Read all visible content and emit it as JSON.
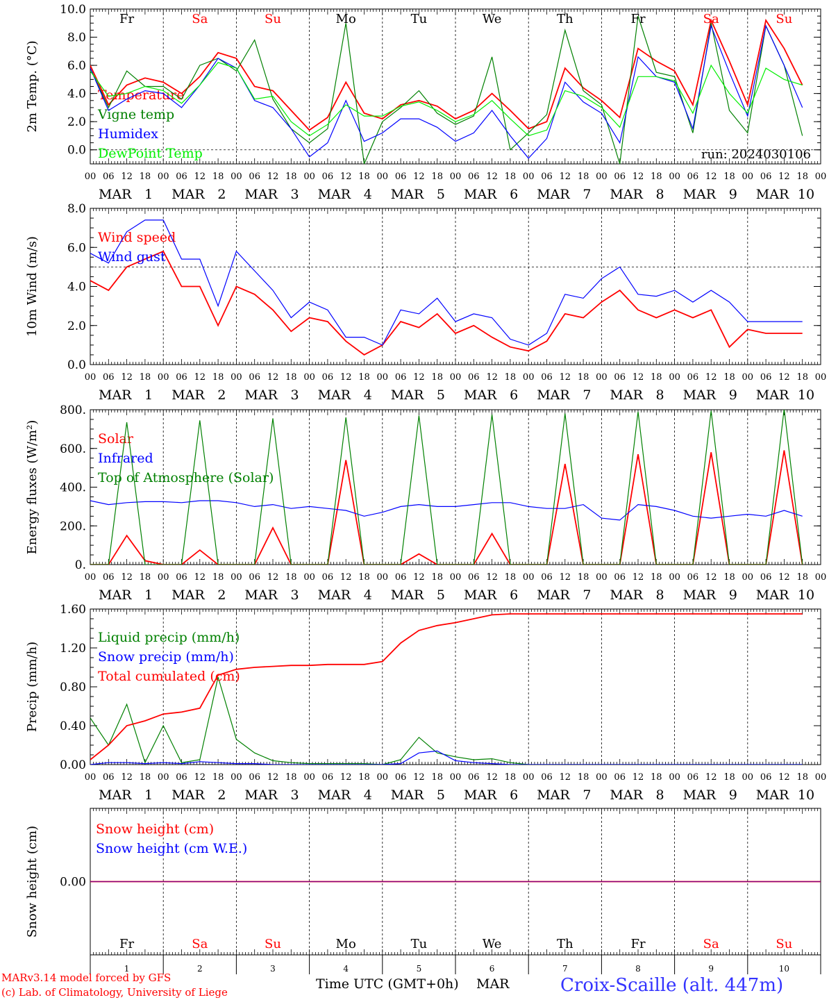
{
  "colors": {
    "red": "#ff0000",
    "blue": "#0000ff",
    "darkgreen": "#008000",
    "lightgreen": "#00ee00",
    "purple": "#800080",
    "black": "#000000",
    "title_blue": "#3333ff"
  },
  "days": [
    {
      "abbr": "Fr",
      "color": "black",
      "month": "MAR",
      "num": "1"
    },
    {
      "abbr": "Sa",
      "color": "red",
      "month": "MAR",
      "num": "2"
    },
    {
      "abbr": "Su",
      "color": "red",
      "month": "MAR",
      "num": "3"
    },
    {
      "abbr": "Mo",
      "color": "black",
      "month": "MAR",
      "num": "4"
    },
    {
      "abbr": "Tu",
      "color": "black",
      "month": "MAR",
      "num": "5"
    },
    {
      "abbr": "We",
      "color": "black",
      "month": "MAR",
      "num": "6"
    },
    {
      "abbr": "Th",
      "color": "black",
      "month": "MAR",
      "num": "7"
    },
    {
      "abbr": "Fr",
      "color": "black",
      "month": "MAR",
      "num": "8"
    },
    {
      "abbr": "Sa",
      "color": "red",
      "month": "MAR",
      "num": "9"
    },
    {
      "abbr": "Su",
      "color": "red",
      "month": "MAR",
      "num": "10"
    }
  ],
  "hour_ticks": [
    "00",
    "06",
    "12",
    "18"
  ],
  "last_tick": "00",
  "footer": {
    "model_line": "MARv3.14 model forced by GFS",
    "credit_line": "(c) Lab. of Climatology, University of Liege",
    "xlabel": "Time UTC (GMT+0h)",
    "month_label": "MAR",
    "station": "Croix-Scaille (alt. 447m)"
  },
  "chart_data": [
    {
      "type": "line",
      "ylabel": "2m Temp. (°C)",
      "ylim": [
        -1,
        10
      ],
      "yticks": [
        "0.0",
        "2.0",
        "4.0",
        "6.0",
        "8.0",
        "10.0"
      ],
      "ytick_values": [
        0,
        2,
        4,
        6,
        8,
        10
      ],
      "hline": 0,
      "annotation": "run: 2024030106",
      "x_unit": "6-hour steps from 2024-03-01 00 UTC",
      "series": [
        {
          "name": "Temperature",
          "color": "red",
          "values": [
            6.0,
            3.2,
            4.6,
            5.1,
            4.8,
            4.0,
            5.2,
            6.9,
            6.5,
            4.5,
            4.2,
            2.8,
            1.4,
            2.3,
            4.8,
            2.6,
            2.2,
            3.2,
            3.5,
            3.1,
            2.2,
            2.8,
            4.0,
            2.8,
            1.5,
            2.0,
            5.8,
            4.4,
            3.5,
            2.3,
            7.2,
            6.3,
            5.6,
            3.2,
            9.2,
            6.3,
            3.2,
            9.2,
            7.2,
            4.6
          ]
        },
        {
          "name": "Vigne temp",
          "color": "darkgreen",
          "values": [
            5.8,
            3.0,
            5.6,
            4.5,
            4.5,
            3.6,
            6.0,
            6.5,
            5.6,
            7.8,
            3.6,
            1.5,
            0.5,
            1.5,
            9.0,
            -1.0,
            2.0,
            3.0,
            4.2,
            2.6,
            1.8,
            2.4,
            6.6,
            0.0,
            1.2,
            2.5,
            8.5,
            4.2,
            3.2,
            -1.0,
            9.5,
            5.5,
            5.2,
            1.2,
            9.0,
            2.8,
            1.2,
            8.8,
            6.0,
            1.0
          ]
        },
        {
          "name": "Humidex",
          "color": "blue",
          "values": [
            5.8,
            2.8,
            3.6,
            4.2,
            4.0,
            3.0,
            4.6,
            6.5,
            5.8,
            3.5,
            3.0,
            1.5,
            -0.5,
            0.5,
            3.5,
            0.6,
            1.2,
            2.2,
            2.2,
            1.6,
            0.6,
            1.2,
            2.8,
            1.0,
            -0.6,
            0.8,
            4.8,
            3.4,
            2.6,
            0.5,
            6.6,
            5.2,
            4.8,
            1.5,
            8.8,
            5.5,
            2.4,
            8.8,
            6.0,
            3.0
          ]
        },
        {
          "name": "DewPoint Temp",
          "color": "lightgreen",
          "values": [
            5.6,
            3.8,
            4.0,
            4.5,
            4.2,
            3.3,
            4.6,
            6.2,
            5.8,
            3.6,
            3.8,
            2.0,
            1.0,
            1.8,
            3.2,
            2.4,
            2.4,
            3.1,
            3.4,
            2.8,
            2.0,
            2.5,
            3.5,
            2.2,
            1.0,
            1.4,
            4.2,
            3.8,
            3.0,
            1.6,
            5.2,
            5.2,
            4.9,
            2.6,
            6.0,
            4.0,
            2.6,
            5.8,
            5.0,
            4.6
          ]
        }
      ]
    },
    {
      "type": "line",
      "ylabel": "10m Wind (m/s)",
      "ylim": [
        0,
        8
      ],
      "yticks": [
        "0.0",
        "2.0",
        "4.0",
        "6.0",
        "8.0"
      ],
      "ytick_values": [
        0,
        2,
        4,
        6,
        8
      ],
      "hline": 5,
      "series": [
        {
          "name": "Wind speed",
          "color": "red",
          "values": [
            4.3,
            3.8,
            5.0,
            5.4,
            5.8,
            4.0,
            4.0,
            2.0,
            4.0,
            3.6,
            2.8,
            1.7,
            2.4,
            2.2,
            1.2,
            0.5,
            1.0,
            2.2,
            1.9,
            2.6,
            1.6,
            2.0,
            1.4,
            0.9,
            0.7,
            1.2,
            2.6,
            2.4,
            3.2,
            3.8,
            2.8,
            2.4,
            2.8,
            2.4,
            2.8,
            0.9,
            1.8,
            1.6,
            1.6,
            1.6
          ]
        },
        {
          "name": "Wind gust",
          "color": "blue",
          "values": [
            5.7,
            5.2,
            6.8,
            7.4,
            7.4,
            5.4,
            5.4,
            3.0,
            5.8,
            4.8,
            3.8,
            2.4,
            3.2,
            2.8,
            1.4,
            1.4,
            1.0,
            2.8,
            2.6,
            3.4,
            2.2,
            2.6,
            2.4,
            1.3,
            1.0,
            1.6,
            3.6,
            3.4,
            4.4,
            5.0,
            3.6,
            3.5,
            3.8,
            3.2,
            3.8,
            3.2,
            2.2,
            2.2,
            2.2,
            2.2
          ]
        }
      ]
    },
    {
      "type": "line",
      "ylabel": "Energy fluxes (W/m²)",
      "ylim": [
        0,
        800
      ],
      "yticks": [
        "0.",
        "200.",
        "400.",
        "600.",
        "800."
      ],
      "ytick_values": [
        0,
        200,
        400,
        600,
        800
      ],
      "series": [
        {
          "name": "Solar",
          "color": "red",
          "values": [
            0,
            0,
            150,
            20,
            0,
            0,
            75,
            0,
            0,
            0,
            190,
            0,
            0,
            0,
            540,
            0,
            0,
            0,
            55,
            0,
            0,
            0,
            160,
            0,
            0,
            0,
            520,
            0,
            0,
            0,
            570,
            0,
            0,
            0,
            580,
            0,
            0,
            0,
            590,
            0
          ]
        },
        {
          "name": "Infrared",
          "color": "blue",
          "values": [
            330,
            310,
            320,
            325,
            325,
            320,
            330,
            330,
            320,
            300,
            310,
            290,
            300,
            290,
            280,
            250,
            270,
            300,
            310,
            300,
            300,
            310,
            320,
            320,
            300,
            290,
            290,
            310,
            240,
            230,
            310,
            300,
            280,
            250,
            240,
            250,
            260,
            250,
            280,
            250
          ]
        },
        {
          "name": "Top of Atmosphere (Solar)",
          "color": "darkgreen",
          "values": [
            0,
            0,
            735,
            0,
            0,
            0,
            745,
            0,
            0,
            0,
            755,
            0,
            0,
            0,
            760,
            0,
            0,
            0,
            770,
            0,
            0,
            0,
            775,
            0,
            0,
            0,
            780,
            0,
            0,
            0,
            790,
            0,
            0,
            0,
            795,
            0,
            0,
            0,
            805,
            0
          ]
        }
      ]
    },
    {
      "type": "line",
      "ylabel": "Precip (mm/h)",
      "ylim": [
        0,
        1.6
      ],
      "yticks": [
        "0.00",
        "0.40",
        "0.80",
        "1.20",
        "1.60"
      ],
      "ytick_values": [
        0,
        0.4,
        0.8,
        1.2,
        1.6
      ],
      "series": [
        {
          "name": "Liquid precip (mm/h)",
          "color": "darkgreen",
          "values": [
            0.48,
            0.2,
            0.62,
            0.02,
            0.4,
            0.02,
            0.05,
            0.9,
            0.26,
            0.12,
            0.04,
            0.02,
            0.01,
            0.01,
            0.01,
            0.01,
            0.0,
            0.05,
            0.28,
            0.12,
            0.08,
            0.05,
            0.06,
            0.02,
            0.0,
            0.0,
            0.0,
            0.0,
            0.0,
            0.0,
            0.0,
            0.0,
            0.0,
            0.0,
            0.0,
            0.0,
            0.0,
            0.0,
            0.0,
            0.0
          ]
        },
        {
          "name": "Snow precip (mm/h)",
          "color": "blue",
          "values": [
            0,
            0.02,
            0.02,
            0.01,
            0.02,
            0.01,
            0.03,
            0.02,
            0.01,
            0.01,
            0,
            0,
            0,
            0,
            0,
            0,
            0,
            0.01,
            0.12,
            0.14,
            0.04,
            0.02,
            0.01,
            0,
            0,
            0,
            0,
            0,
            0,
            0,
            0,
            0,
            0,
            0,
            0,
            0,
            0,
            0,
            0,
            0
          ]
        },
        {
          "name": "Total cumulated (cm)",
          "color": "red",
          "values": [
            0.05,
            0.2,
            0.4,
            0.45,
            0.52,
            0.54,
            0.58,
            0.92,
            0.98,
            1.0,
            1.01,
            1.02,
            1.02,
            1.03,
            1.03,
            1.03,
            1.06,
            1.25,
            1.38,
            1.43,
            1.46,
            1.5,
            1.54,
            1.55,
            1.55,
            1.55,
            1.55,
            1.55,
            1.55,
            1.55,
            1.55,
            1.55,
            1.55,
            1.55,
            1.55,
            1.55,
            1.55,
            1.55,
            1.55,
            1.55
          ]
        }
      ]
    },
    {
      "type": "line",
      "ylabel": "Snow height (cm)",
      "ylim": [
        -1,
        1
      ],
      "yticks": [
        "0.00"
      ],
      "ytick_values": [
        0
      ],
      "series": [
        {
          "name": "Snow height (cm)",
          "color": "red",
          "values": [
            0,
            0
          ]
        },
        {
          "name": "Snow height (cm W.E.)",
          "color": "blue",
          "values": [
            0,
            0
          ]
        }
      ]
    }
  ]
}
